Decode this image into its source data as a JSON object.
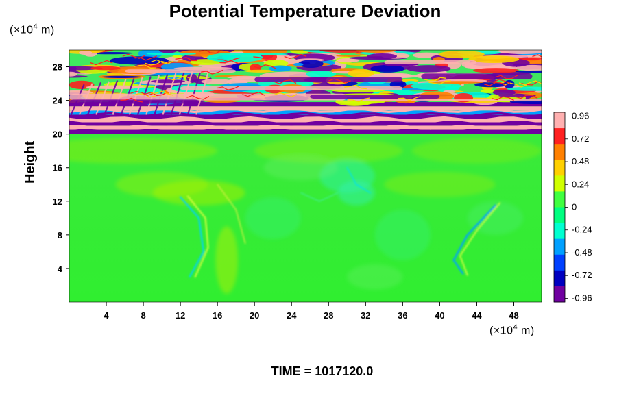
{
  "chart_data": {
    "type": "heatmap",
    "title": "Potential Temperature Deviation",
    "ylabel": "Height",
    "x_unit": {
      "prefix": "(×10",
      "exp": "4",
      "suffix": " m)"
    },
    "y_unit": {
      "prefix": "(×10",
      "exp": "4",
      "suffix": " m)"
    },
    "xlim": [
      0,
      51
    ],
    "ylim": [
      0,
      30
    ],
    "x_ticks": [
      4,
      8,
      12,
      16,
      20,
      24,
      28,
      32,
      36,
      40,
      44,
      48
    ],
    "y_ticks": [
      4,
      8,
      12,
      16,
      20,
      24,
      28
    ],
    "colorbar": {
      "range": [
        -1.0,
        1.0
      ],
      "tick_labels": [
        "0.96",
        "0.72",
        "0.48",
        "0.24",
        "0",
        "-0.24",
        "-0.48",
        "-0.72",
        "-0.96"
      ],
      "tick_values": [
        0.96,
        0.72,
        0.48,
        0.24,
        0,
        -0.24,
        -0.48,
        -0.72,
        -0.96
      ],
      "colors": [
        "#ffb0b0",
        "#ff2020",
        "#ff8000",
        "#ffd000",
        "#d0ff00",
        "#40ff40",
        "#00ff80",
        "#00ffd0",
        "#00a0ff",
        "#0040ff",
        "#0000c0",
        "#7000a0"
      ]
    },
    "field_description": "Lower region (0 to 20) near zero, green with light cyan/yellow plumes; stratified layer at 20-22 of alternating magenta/pink bands; upper region (22 to 30) turbulent with values spanning full range.",
    "time_label": "TIME = 1017120.0"
  }
}
